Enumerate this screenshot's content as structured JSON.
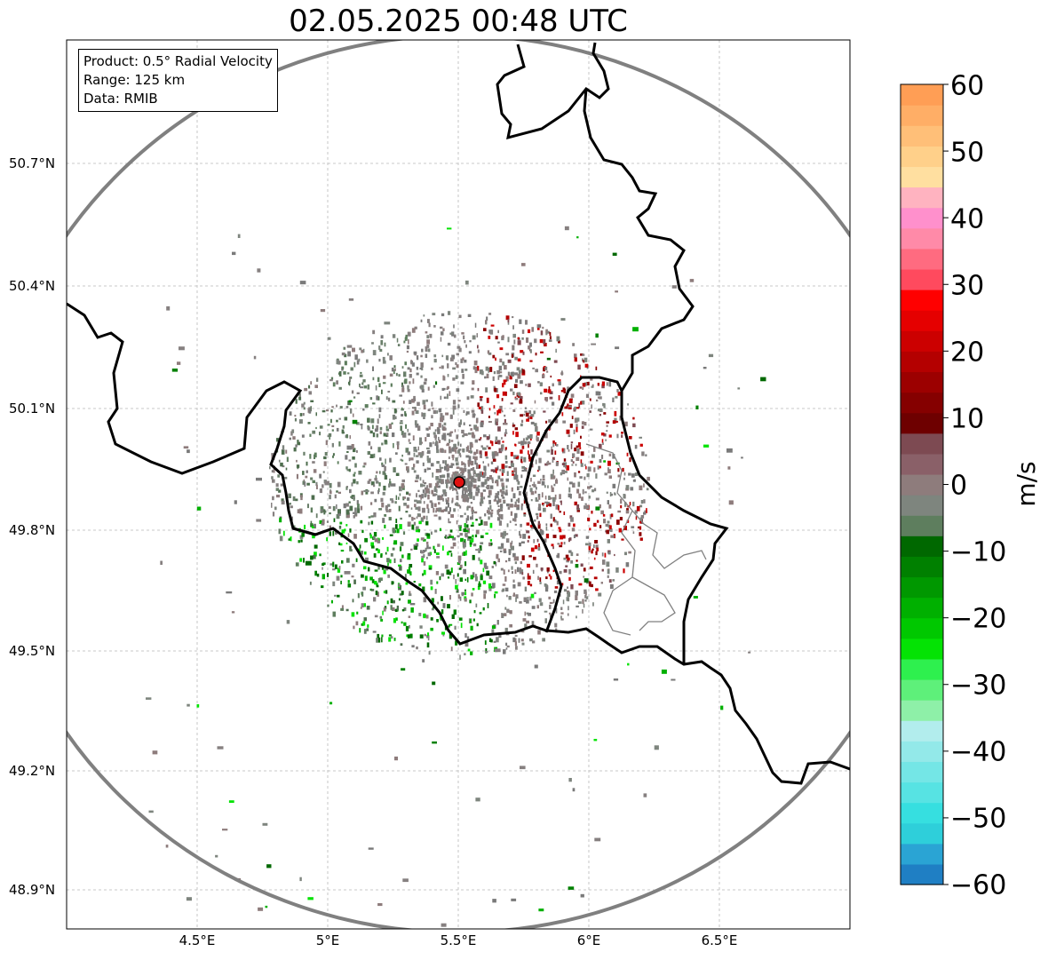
{
  "title": "02.05.2025 00:48 UTC",
  "info": {
    "product": "Product: 0.5° Radial Velocity",
    "range": "Range: 125 km",
    "source": "Data: RMIB"
  },
  "map": {
    "radar_site": {
      "lon": 5.5,
      "lat": 49.914
    },
    "range_km": 125,
    "extent": {
      "lon_min": 4.0,
      "lon_max": 7.0,
      "lat_min": 48.8,
      "lat_max": 51.0
    },
    "lon_ticks": [
      "4.5°E",
      "5°E",
      "5.5°E",
      "6°E",
      "6.5°E"
    ],
    "lat_ticks": [
      "48.9°N",
      "49.2°N",
      "49.5°N",
      "49.8°N",
      "50.1°N",
      "50.4°N",
      "50.7°N"
    ],
    "grid": true
  },
  "colorbar": {
    "label": "m/s",
    "min": -60,
    "max": 60,
    "ticks": [
      "60",
      "50",
      "40",
      "30",
      "20",
      "10",
      "0",
      "−10",
      "−20",
      "−30",
      "−40",
      "−50",
      "−60"
    ],
    "colors": [
      "#1f7fc4",
      "#2aa4d4",
      "#2ecfda",
      "#36dfe0",
      "#57e3e3",
      "#74e6e6",
      "#93e9e9",
      "#b2eded",
      "#8ef0a8",
      "#5ef07a",
      "#2ef04e",
      "#04e304",
      "#00c800",
      "#00b000",
      "#009800",
      "#008000",
      "#006800",
      "#5e7e5e",
      "#7e857e",
      "#8e7c7c",
      "#8a6068",
      "#7d4a52",
      "#6e0000",
      "#850000",
      "#9c0000",
      "#b40000",
      "#cc0000",
      "#e50000",
      "#ff0000",
      "#ff4a5e",
      "#ff6b80",
      "#ff8aa8",
      "#ff90cc",
      "#ffb3c0",
      "#ffdfa0",
      "#ffd08a",
      "#ffbf78",
      "#ffae66",
      "#ff9e55"
    ]
  }
}
